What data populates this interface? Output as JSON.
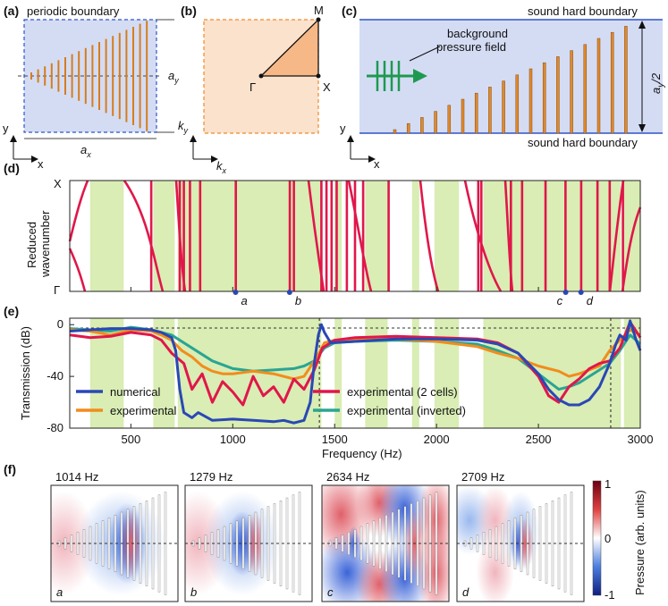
{
  "panel_a": {
    "label": "(a)",
    "title": "periodic boundary",
    "ay": "a",
    "ay_sub": "y",
    "ax": "a",
    "ax_sub": "x",
    "axis_y": "y",
    "axis_x": "x",
    "bars": 18
  },
  "panel_b": {
    "label": "(b)",
    "M": "M",
    "X": "X",
    "Gamma": "Γ",
    "ky": "k",
    "ky_sub": "y",
    "kx": "k",
    "kx_sub": "x"
  },
  "panel_c": {
    "label": "(c)",
    "top_boundary": "sound hard boundary",
    "bottom_boundary": "sound hard boundary",
    "field_line1": "background",
    "field_line2": "pressure field",
    "ay_half": "a",
    "ay_half_sub": "y",
    "ay_half_tail": "/2",
    "axis_y": "y",
    "axis_x": "x",
    "bars": 18
  },
  "panel_d": {
    "label": "(d)",
    "ylabel_line1": "Reduced",
    "ylabel_line2": "wavenumber",
    "ytop": "X",
    "ybottom": "Γ",
    "markers": [
      {
        "label": "a",
        "freq": 1014
      },
      {
        "label": "b",
        "freq": 1279
      },
      {
        "label": "c",
        "freq": 2634
      },
      {
        "label": "d",
        "freq": 2709
      }
    ]
  },
  "panel_e": {
    "label": "(e)",
    "chart_data": {
      "type": "line",
      "xlabel": "Frequency (Hz)",
      "ylabel": "Transmission (dB)",
      "xlim": [
        200,
        3000
      ],
      "ylim": [
        -80,
        5
      ],
      "xticks": [
        500,
        1000,
        1500,
        2000,
        2500,
        3000
      ],
      "yticks": [
        0,
        -40,
        -80
      ],
      "band_gaps": [
        [
          300,
          465
        ],
        [
          610,
          715
        ],
        [
          730,
          1435
        ],
        [
          1500,
          1535
        ],
        [
          1650,
          1760
        ],
        [
          1880,
          1915
        ],
        [
          1990,
          2110
        ],
        [
          2230,
          2905
        ],
        [
          2920,
          3000
        ]
      ],
      "vlines": [
        1425,
        2855
      ],
      "legend": [
        {
          "name": "numerical",
          "color": "#2a47b5"
        },
        {
          "name": "experimental",
          "color": "#f28c1c"
        },
        {
          "name": "experimental (2 cells)",
          "color": "#e0174a"
        },
        {
          "name": "experimental (inverted)",
          "color": "#2aa592"
        }
      ],
      "series": [
        {
          "name": "numerical",
          "color": "#2a47b5",
          "x": [
            200,
            300,
            400,
            500,
            600,
            650,
            700,
            720,
            740,
            760,
            780,
            800,
            830,
            900,
            1000,
            1100,
            1200,
            1250,
            1300,
            1350,
            1380,
            1400,
            1420,
            1435,
            1450,
            1480,
            1600,
            1800,
            2000,
            2200,
            2300,
            2400,
            2500,
            2550,
            2600,
            2650,
            2700,
            2750,
            2800,
            2850,
            2880,
            2900,
            2930,
            2950,
            2980,
            3000
          ],
          "y": [
            -5,
            -4,
            -3,
            -3,
            -4,
            -6,
            -10,
            -20,
            -50,
            -68,
            -70,
            -72,
            -68,
            -74,
            -73,
            -74,
            -75,
            -74,
            -76,
            -74,
            -60,
            -30,
            -8,
            0,
            -6,
            -14,
            -13,
            -11,
            -11,
            -12,
            -15,
            -22,
            -38,
            -50,
            -58,
            -62,
            -62,
            -58,
            -48,
            -30,
            -15,
            -8,
            -12,
            3,
            -12,
            -20
          ]
        },
        {
          "name": "experimental",
          "color": "#f28c1c",
          "x": [
            200,
            300,
            400,
            500,
            600,
            650,
            700,
            750,
            800,
            850,
            900,
            950,
            1000,
            1100,
            1200,
            1300,
            1350,
            1400,
            1430,
            1450,
            1500,
            1600,
            1800,
            2000,
            2200,
            2300,
            2400,
            2500,
            2600,
            2650,
            2700,
            2800,
            2850,
            2900,
            2950,
            3000
          ],
          "y": [
            -4,
            -5,
            -8,
            -4,
            -5,
            -8,
            -12,
            -20,
            -25,
            -32,
            -36,
            -38,
            -38,
            -36,
            -38,
            -42,
            -40,
            -28,
            -20,
            -14,
            -12,
            -12,
            -11,
            -13,
            -17,
            -22,
            -26,
            -32,
            -36,
            -40,
            -38,
            -32,
            -20,
            -12,
            -4,
            -8
          ]
        },
        {
          "name": "experimental (2 cells)",
          "color": "#e0174a",
          "x": [
            200,
            300,
            400,
            500,
            600,
            650,
            700,
            760,
            800,
            850,
            900,
            950,
            1000,
            1050,
            1100,
            1150,
            1200,
            1250,
            1300,
            1350,
            1400,
            1440,
            1500,
            1600,
            1800,
            2000,
            2200,
            2300,
            2400,
            2500,
            2550,
            2600,
            2650,
            2700,
            2750,
            2800,
            2850,
            2900,
            2950,
            3000
          ],
          "y": [
            -8,
            -10,
            -9,
            -6,
            -8,
            -12,
            -22,
            -30,
            -50,
            -38,
            -60,
            -44,
            -52,
            -62,
            -40,
            -55,
            -48,
            -60,
            -42,
            -50,
            -35,
            -18,
            -12,
            -10,
            -9,
            -10,
            -11,
            -14,
            -22,
            -40,
            -55,
            -60,
            -48,
            -42,
            -34,
            -30,
            -28,
            -18,
            2,
            -10
          ]
        },
        {
          "name": "experimental (inverted)",
          "color": "#2aa592",
          "x": [
            200,
            300,
            400,
            500,
            600,
            700,
            800,
            900,
            1000,
            1100,
            1200,
            1300,
            1350,
            1400,
            1450,
            1500,
            1600,
            1800,
            2000,
            2200,
            2300,
            2400,
            2500,
            2550,
            2600,
            2650,
            2700,
            2750,
            2800,
            2850,
            2900,
            2950,
            3000
          ],
          "y": [
            -3,
            -4,
            -5,
            -2,
            -4,
            -8,
            -18,
            -28,
            -34,
            -36,
            -35,
            -34,
            -32,
            -28,
            -18,
            -14,
            -13,
            -12,
            -13,
            -15,
            -20,
            -26,
            -38,
            -44,
            -50,
            -48,
            -45,
            -40,
            -35,
            -30,
            -20,
            -8,
            -15
          ]
        }
      ]
    }
  },
  "panel_f": {
    "label": "(f)",
    "maps": [
      {
        "freq": "1014 Hz",
        "tag": "a"
      },
      {
        "freq": "1279 Hz",
        "tag": "b"
      },
      {
        "freq": "2634 Hz",
        "tag": "c"
      },
      {
        "freq": "2709 Hz",
        "tag": "d"
      }
    ],
    "colorbar": {
      "max": "1",
      "mid": "0",
      "min": "-1",
      "label": "Pressure (arb. units)"
    }
  }
}
